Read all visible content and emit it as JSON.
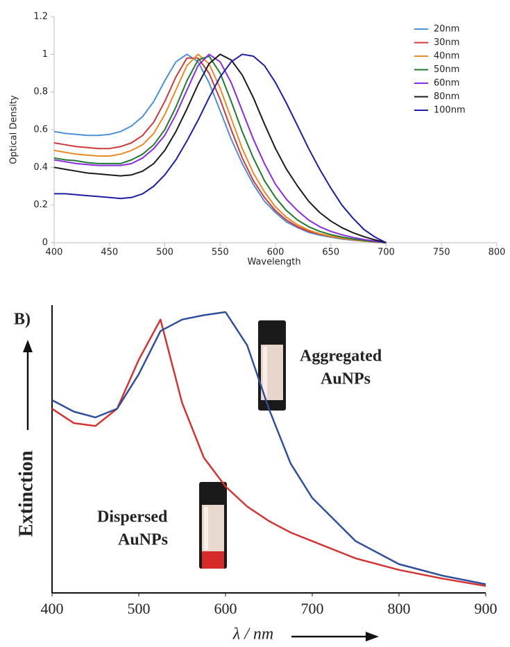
{
  "chart_data": [
    {
      "type": "line",
      "xlabel": "Wavelength",
      "ylabel": "Optical Density",
      "x": [
        400,
        410,
        420,
        430,
        440,
        450,
        460,
        470,
        480,
        490,
        500,
        510,
        520,
        530,
        540,
        550,
        560,
        570,
        580,
        590,
        600,
        610,
        620,
        630,
        640,
        650,
        660,
        670,
        680,
        690,
        700
      ],
      "series": [
        {
          "name": "20nm",
          "color": "#4a8fd8",
          "values": [
            0.59,
            0.58,
            0.575,
            0.57,
            0.57,
            0.575,
            0.59,
            0.62,
            0.67,
            0.75,
            0.86,
            0.96,
            1.0,
            0.96,
            0.85,
            0.7,
            0.55,
            0.42,
            0.31,
            0.22,
            0.16,
            0.11,
            0.08,
            0.055,
            0.04,
            0.03,
            0.02,
            0.013,
            0.008,
            0.004,
            0
          ]
        },
        {
          "name": "30nm",
          "color": "#d0393b",
          "values": [
            0.53,
            0.52,
            0.51,
            0.505,
            0.5,
            0.5,
            0.51,
            0.53,
            0.57,
            0.64,
            0.75,
            0.88,
            0.98,
            0.98,
            0.9,
            0.76,
            0.6,
            0.45,
            0.33,
            0.24,
            0.17,
            0.12,
            0.085,
            0.06,
            0.045,
            0.033,
            0.023,
            0.015,
            0.009,
            0.004,
            0
          ]
        },
        {
          "name": "40nm",
          "color": "#e98a24",
          "values": [
            0.49,
            0.48,
            0.47,
            0.465,
            0.46,
            0.46,
            0.47,
            0.49,
            0.52,
            0.58,
            0.68,
            0.81,
            0.94,
            1.0,
            0.95,
            0.82,
            0.66,
            0.5,
            0.37,
            0.27,
            0.19,
            0.135,
            0.095,
            0.067,
            0.048,
            0.035,
            0.024,
            0.016,
            0.009,
            0.004,
            0
          ]
        },
        {
          "name": "50nm",
          "color": "#1f7a2e",
          "values": [
            0.45,
            0.44,
            0.435,
            0.425,
            0.42,
            0.42,
            0.42,
            0.44,
            0.47,
            0.52,
            0.6,
            0.72,
            0.86,
            0.97,
            0.99,
            0.9,
            0.75,
            0.59,
            0.45,
            0.33,
            0.24,
            0.17,
            0.12,
            0.085,
            0.06,
            0.043,
            0.03,
            0.02,
            0.012,
            0.005,
            0
          ]
        },
        {
          "name": "60nm",
          "color": "#8a2be2",
          "values": [
            0.44,
            0.43,
            0.42,
            0.415,
            0.41,
            0.41,
            0.41,
            0.42,
            0.45,
            0.5,
            0.57,
            0.68,
            0.81,
            0.94,
            1.0,
            0.96,
            0.85,
            0.7,
            0.55,
            0.42,
            0.31,
            0.23,
            0.17,
            0.12,
            0.085,
            0.06,
            0.042,
            0.028,
            0.017,
            0.008,
            0
          ]
        },
        {
          "name": "80nm",
          "color": "#1a1a1a",
          "values": [
            0.4,
            0.39,
            0.38,
            0.37,
            0.365,
            0.36,
            0.355,
            0.36,
            0.38,
            0.42,
            0.49,
            0.59,
            0.71,
            0.84,
            0.95,
            1.0,
            0.97,
            0.89,
            0.77,
            0.63,
            0.5,
            0.39,
            0.3,
            0.22,
            0.16,
            0.115,
            0.08,
            0.053,
            0.032,
            0.015,
            0
          ]
        },
        {
          "name": "100nm",
          "color": "#1c1ca6",
          "values": [
            0.26,
            0.26,
            0.255,
            0.25,
            0.245,
            0.24,
            0.235,
            0.24,
            0.26,
            0.3,
            0.36,
            0.44,
            0.54,
            0.65,
            0.77,
            0.88,
            0.96,
            1.0,
            0.99,
            0.94,
            0.85,
            0.74,
            0.62,
            0.5,
            0.39,
            0.29,
            0.2,
            0.13,
            0.07,
            0.03,
            0
          ]
        }
      ],
      "xlim": [
        400,
        800
      ],
      "xticks": [
        400,
        450,
        500,
        550,
        600,
        650,
        700,
        750,
        800
      ],
      "ylim": [
        0,
        1.2
      ],
      "yticks": [
        0,
        0.2,
        0.4,
        0.6,
        0.8,
        1,
        1.2
      ],
      "legend": "upper right"
    },
    {
      "type": "line",
      "panel_label": "B)",
      "xlabel": "λ / nm",
      "ylabel": "Extinction",
      "x": [
        400,
        425,
        450,
        475,
        500,
        525,
        550,
        575,
        600,
        625,
        650,
        675,
        700,
        750,
        800,
        850,
        900
      ],
      "series": [
        {
          "color": "#d63232",
          "values": [
            0.64,
            0.59,
            0.58,
            0.64,
            0.81,
            0.95,
            0.66,
            0.47,
            0.37,
            0.3,
            0.25,
            0.21,
            0.18,
            0.12,
            0.08,
            0.05,
            0.024
          ]
        },
        {
          "color": "#2f4f9c",
          "values": [
            0.67,
            0.63,
            0.61,
            0.64,
            0.76,
            0.91,
            0.95,
            0.965,
            0.976,
            0.86,
            0.64,
            0.45,
            0.33,
            0.18,
            0.1,
            0.06,
            0.03
          ]
        }
      ],
      "xlim": [
        400,
        900
      ],
      "xticks": [
        400,
        500,
        600,
        700,
        800,
        900
      ],
      "ylim": [
        0,
        1
      ],
      "annotations": [
        {
          "lines": [
            "Aggregated",
            "AuNPs"
          ]
        },
        {
          "lines": [
            "Dispersed",
            "AuNPs"
          ]
        }
      ]
    }
  ]
}
